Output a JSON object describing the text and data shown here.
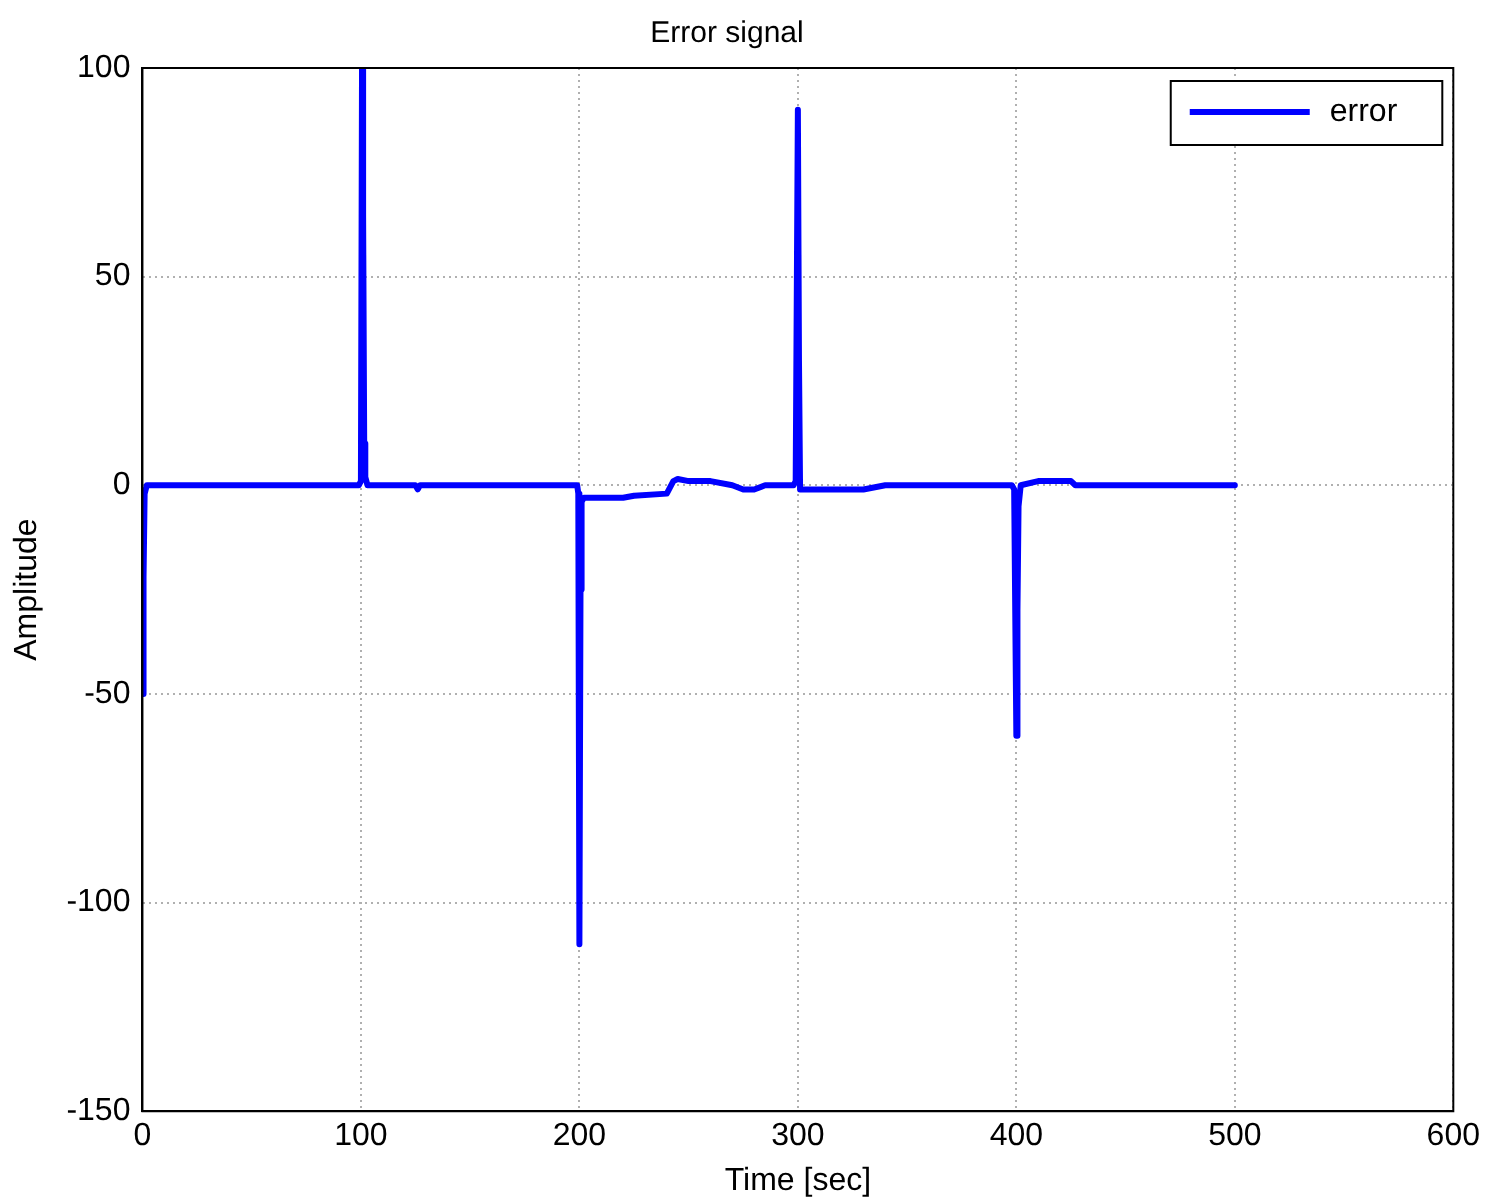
{
  "chart_data": {
    "type": "line",
    "title": "Error signal",
    "xlabel": "Time [sec]",
    "ylabel": "Amplitude",
    "series": [
      {
        "name": "error",
        "color": "#0000ff",
        "x": [
          0,
          0.5,
          1,
          2,
          3,
          99,
          100,
          100.5,
          101,
          101.5,
          102,
          103,
          104,
          125,
          126,
          127,
          199,
          199.5,
          200,
          200.5,
          201,
          202,
          220,
          225,
          240,
          243,
          245,
          250,
          260,
          270,
          275,
          280,
          285,
          298,
          299,
          300,
          300.5,
          301,
          302,
          330,
          340,
          398,
          399,
          400,
          400.5,
          401,
          402,
          410,
          425,
          427,
          500
        ],
        "values": [
          -50,
          -22,
          -2,
          0,
          0,
          0,
          1,
          100,
          65,
          10,
          2,
          0,
          0,
          0,
          -1,
          0,
          0,
          -2,
          -110,
          -25,
          -4,
          -3,
          -3,
          -2.5,
          -2,
          1,
          1.5,
          1,
          1,
          0,
          -1,
          -1,
          0,
          0,
          1,
          90,
          30,
          -1,
          -1,
          -1,
          0,
          0,
          -1,
          -60,
          -30,
          -5,
          0,
          1,
          1,
          0,
          0
        ]
      }
    ],
    "xlim": [
      0,
      600
    ],
    "xticks": [
      0,
      100,
      200,
      300,
      400,
      500,
      600
    ],
    "ylim": [
      -150,
      100
    ],
    "yticks": [
      -150,
      -100,
      -50,
      0,
      50,
      100
    ],
    "grid": true,
    "legend": "top right",
    "marker": "none",
    "line_style": "solid"
  }
}
